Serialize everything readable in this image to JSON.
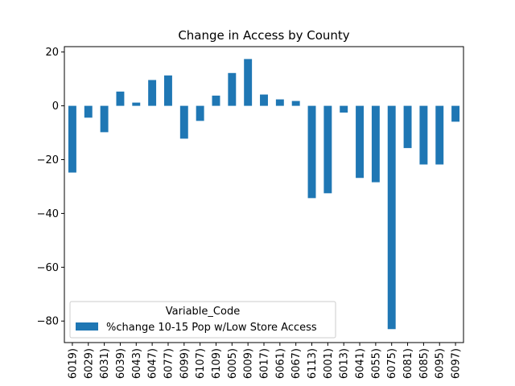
{
  "chart_data": {
    "type": "bar",
    "title": "Change in Access by County",
    "xlabel": "",
    "ylabel": "",
    "categories": [
      "6019)",
      "6029)",
      "6031)",
      "6039)",
      "6043)",
      "6047)",
      "6077)",
      "6099)",
      "6107)",
      "6109)",
      "6005)",
      "6009)",
      "6017)",
      "6061)",
      "6067)",
      "6113)",
      "6001)",
      "6013)",
      "6041)",
      "6055)",
      "6075)",
      "6081)",
      "6085)",
      "6095)",
      "6097)"
    ],
    "series": [
      {
        "name": "%change 10-15 Pop w/Low Store Access",
        "color": "#1f77b4",
        "values": [
          -24.8,
          -4.4,
          -9.8,
          5.3,
          1.2,
          9.6,
          11.3,
          -12.2,
          -5.6,
          3.8,
          12.2,
          17.4,
          4.2,
          2.4,
          1.8,
          -34.3,
          -32.5,
          -2.5,
          -26.8,
          -28.4,
          -83.0,
          -15.7,
          -21.8,
          -21.8,
          -5.9
        ]
      }
    ],
    "ylim": [
      -88,
      22
    ],
    "yticks": [
      20,
      0,
      -20,
      -40,
      -60,
      -80
    ],
    "ytick_labels": [
      "20",
      "0",
      "−20",
      "−40",
      "−60",
      "−80"
    ],
    "legend": {
      "title": "Variable_Code",
      "placement": "lower-left"
    },
    "grid": false
  }
}
